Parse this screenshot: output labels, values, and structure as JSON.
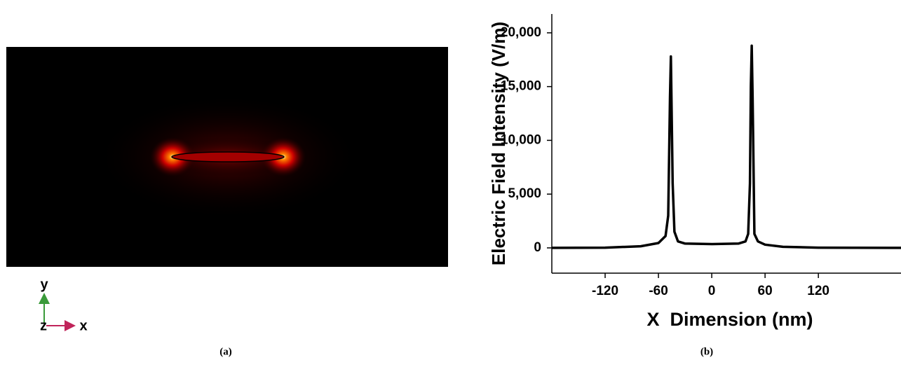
{
  "figure": {
    "panel_a_label": "(a)",
    "panel_b_label": "(b)",
    "axis_y": "y",
    "axis_z": "z",
    "axis_x": "x"
  },
  "chart_data": {
    "type": "line",
    "x_label": "X  Dimension (nm)",
    "y_label": "Electric Field Intensity (V/m)",
    "x": [
      -180,
      -120,
      -80,
      -60,
      -52,
      -49,
      -47,
      -46,
      -44,
      -42,
      -38,
      -30,
      0,
      30,
      38,
      41,
      43,
      44,
      45,
      46,
      48,
      52,
      60,
      80,
      120,
      213
    ],
    "values": [
      0,
      20,
      150,
      450,
      1100,
      3000,
      14000,
      17800,
      6000,
      1500,
      600,
      400,
      350,
      400,
      600,
      1300,
      6000,
      15000,
      18800,
      14000,
      1300,
      600,
      300,
      100,
      20,
      0
    ],
    "color": "#000000",
    "xlim": [
      -180,
      213
    ],
    "xticks": [
      -120,
      -60,
      0,
      60,
      120
    ],
    "ylim": [
      -2350,
      21750
    ],
    "yticks": [
      0,
      {
        "value": 5000,
        "label": "5,000"
      },
      {
        "value": 10000,
        "label": "10,000"
      },
      {
        "value": 15000,
        "label": "15,000"
      },
      {
        "value": 20000,
        "label": "20,000"
      }
    ]
  }
}
